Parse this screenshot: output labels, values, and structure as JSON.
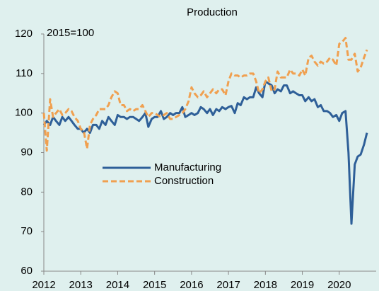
{
  "chart_data": {
    "type": "line",
    "title": "Production",
    "annotation": "2015=100",
    "x": [
      2012,
      2012.08,
      2012.17,
      2012.25,
      2012.33,
      2012.42,
      2012.5,
      2012.58,
      2012.67,
      2012.75,
      2012.83,
      2012.92,
      2013,
      2013.08,
      2013.17,
      2013.25,
      2013.33,
      2013.42,
      2013.5,
      2013.58,
      2013.67,
      2013.75,
      2013.83,
      2013.92,
      2014,
      2014.08,
      2014.17,
      2014.25,
      2014.33,
      2014.42,
      2014.5,
      2014.58,
      2014.67,
      2014.75,
      2014.83,
      2014.92,
      2015,
      2015.08,
      2015.17,
      2015.25,
      2015.33,
      2015.42,
      2015.5,
      2015.58,
      2015.67,
      2015.75,
      2015.83,
      2015.92,
      2016,
      2016.08,
      2016.17,
      2016.25,
      2016.33,
      2016.42,
      2016.5,
      2016.58,
      2016.67,
      2016.75,
      2016.83,
      2016.92,
      2017,
      2017.08,
      2017.17,
      2017.25,
      2017.33,
      2017.42,
      2017.5,
      2017.58,
      2017.67,
      2017.75,
      2017.83,
      2017.92,
      2018,
      2018.08,
      2018.17,
      2018.25,
      2018.33,
      2018.42,
      2018.5,
      2018.58,
      2018.67,
      2018.75,
      2018.83,
      2018.92,
      2019,
      2019.08,
      2019.17,
      2019.25,
      2019.33,
      2019.42,
      2019.5,
      2019.58,
      2019.67,
      2019.75,
      2019.83,
      2019.92,
      2020,
      2020.08,
      2020.17,
      2020.25,
      2020.33,
      2020.42,
      2020.5,
      2020.58,
      2020.67,
      2020.75
    ],
    "series": [
      {
        "name": "Manufacturing",
        "color": "#2e5f98",
        "style": "solid",
        "values": [
          97,
          98,
          97,
          99,
          98,
          97,
          99,
          98,
          99,
          98,
          97,
          96,
          96,
          95,
          96,
          95,
          97,
          97,
          96,
          98,
          97,
          99,
          98,
          97,
          99.5,
          99,
          99,
          98.5,
          99,
          99,
          98.5,
          98,
          99,
          100,
          96.5,
          98.5,
          99,
          99,
          100.5,
          98.5,
          99,
          100,
          99.5,
          100,
          100,
          101.5,
          99,
          99.5,
          100,
          99.5,
          100,
          101.5,
          101,
          100,
          101,
          99.5,
          101,
          100.5,
          101.5,
          101,
          101.5,
          101.8,
          100,
          102.5,
          102,
          104,
          103.5,
          104,
          104,
          106.5,
          105,
          104,
          108,
          107.5,
          107,
          105,
          106,
          105.5,
          107,
          107,
          105,
          105.5,
          105,
          104.5,
          104.5,
          103,
          104,
          103,
          103.5,
          101.5,
          102,
          100.5,
          100.5,
          100,
          99,
          99.5,
          98,
          100,
          100.5,
          90,
          72,
          87,
          89,
          89.5,
          92,
          95
        ]
      },
      {
        "name": "Construction",
        "color": "#f0a050",
        "style": "dashed",
        "values": [
          100,
          90.5,
          103.5,
          99,
          100,
          101,
          99.5,
          100,
          101,
          100.5,
          99,
          98,
          96,
          95.5,
          91,
          97,
          98.5,
          99.5,
          101,
          101,
          101,
          102,
          104,
          105.5,
          105,
          102,
          102,
          100.5,
          101,
          100.5,
          101,
          101,
          102,
          100.5,
          99,
          100,
          100,
          99.5,
          99,
          99.5,
          100,
          98.5,
          98.5,
          99,
          99.5,
          100,
          101,
          103,
          106.5,
          105,
          104,
          104.5,
          105.5,
          104,
          105,
          106,
          105,
          106,
          106,
          104.5,
          108,
          110,
          109.5,
          109.5,
          109,
          109.5,
          109.5,
          110,
          110,
          108,
          105,
          106,
          108,
          109,
          105.5,
          106,
          110.5,
          109,
          109,
          109,
          111,
          110,
          110,
          109.5,
          111,
          109.5,
          114,
          114.5,
          113,
          112,
          113,
          112.5,
          113,
          114,
          113.5,
          112,
          117.5,
          118,
          119,
          113.5,
          113.5,
          115,
          110.5,
          111.5,
          114,
          116
        ]
      }
    ],
    "xlim": [
      2012,
      2021
    ],
    "xticks": [
      2012,
      2013,
      2014,
      2015,
      2016,
      2017,
      2018,
      2019,
      2020
    ],
    "ylim": [
      60,
      120
    ],
    "yticks": [
      60,
      70,
      80,
      90,
      100,
      110,
      120
    ],
    "legend": "center-left",
    "background": "#dff0ee"
  }
}
